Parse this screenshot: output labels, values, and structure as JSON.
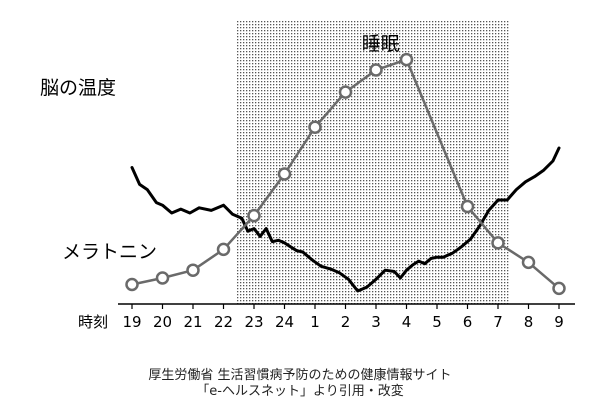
{
  "chart_data": {
    "type": "line",
    "x_axis_label": "時刻",
    "categories": [
      "19",
      "20",
      "21",
      "22",
      "23",
      "24",
      "1",
      "2",
      "3",
      "4",
      "5",
      "6",
      "7",
      "8",
      "9"
    ],
    "sleep_band": {
      "label": "睡眠",
      "start": "22",
      "end": "7"
    },
    "series": [
      {
        "name": "脳の温度",
        "color": "#000000",
        "x": [
          0,
          0.25,
          0.5,
          0.8,
          1,
          1.3,
          1.6,
          1.9,
          2.2,
          2.6,
          3.0,
          3.3,
          3.6,
          3.8,
          4.0,
          4.2,
          4.4,
          4.6,
          4.8,
          5.0,
          5.2,
          5.4,
          5.6,
          5.9,
          6.2,
          6.5,
          6.8,
          7.1,
          7.4,
          7.7,
          8.0,
          8.3,
          8.6,
          8.8,
          9.0,
          9.2,
          9.4,
          9.6,
          9.8,
          10.0,
          10.2,
          10.5,
          10.8,
          11.1,
          11.4,
          11.7,
          12.0,
          12.3,
          12.6,
          12.9,
          13.2,
          13.5,
          13.8,
          14.0
        ],
        "values": [
          9.5,
          8.2,
          7.8,
          6.8,
          6.6,
          6.0,
          6.3,
          6.0,
          6.4,
          6.2,
          6.6,
          5.9,
          5.6,
          4.6,
          4.8,
          4.2,
          4.8,
          3.8,
          3.9,
          3.7,
          3.4,
          3.1,
          3.0,
          2.4,
          1.9,
          1.7,
          1.4,
          0.9,
          0.0,
          0.3,
          0.9,
          1.6,
          1.5,
          1.0,
          1.6,
          2.0,
          2.3,
          2.1,
          2.5,
          2.6,
          2.6,
          2.9,
          3.4,
          4.0,
          5.0,
          6.2,
          7.0,
          7.0,
          7.8,
          8.4,
          8.8,
          9.3,
          10.0,
          11.0
        ]
      },
      {
        "name": "メラトニン",
        "color": "#6a6a6a",
        "marker": "circle",
        "x": [
          0,
          1,
          2,
          3,
          4,
          5,
          6,
          7,
          8,
          9,
          11,
          12,
          13,
          14
        ],
        "values": [
          0.5,
          1.0,
          1.6,
          3.2,
          5.8,
          9.0,
          12.6,
          15.3,
          17.0,
          17.8,
          6.5,
          3.7,
          2.2,
          0.2
        ]
      }
    ],
    "ylim": [
      -1,
      19
    ]
  },
  "source_note": {
    "line1": "厚生労働省 生活習慣病予防のための健康情報サイト",
    "line2": "「e-ヘルスネット」より引用・改変"
  }
}
